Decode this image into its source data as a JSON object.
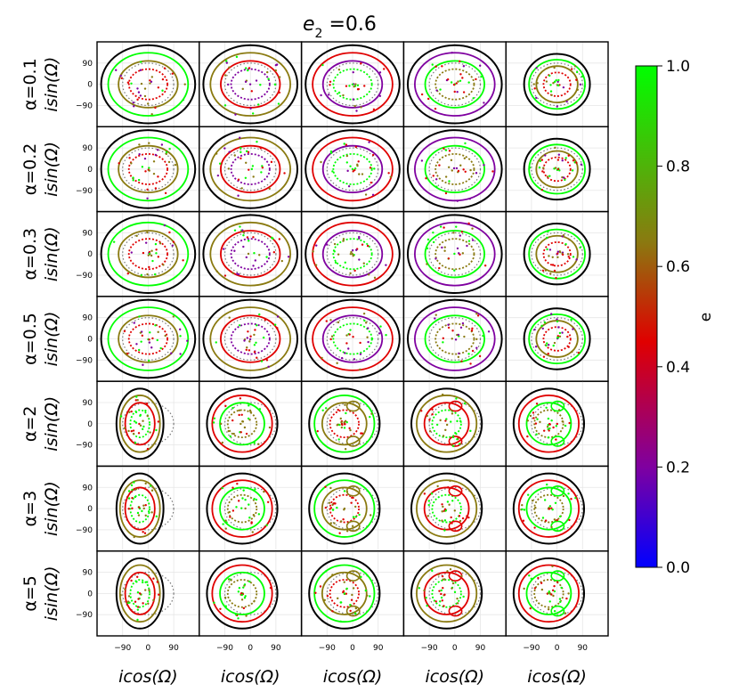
{
  "chart_data": {
    "type": "scatter",
    "title": "e₂ =0.6",
    "title_main": "e",
    "title_sub": "2",
    "title_rest": " =0.6",
    "grid": true,
    "columns": 5,
    "rows": [
      {
        "label": "α=0.1",
        "ylabel": "isin(Ω)"
      },
      {
        "label": "α=0.2",
        "ylabel": "isin(Ω)"
      },
      {
        "label": "α=0.3",
        "ylabel": "isin(Ω)"
      },
      {
        "label": "α=0.5",
        "ylabel": "isin(Ω)"
      },
      {
        "label": "α=2",
        "ylabel": "isin(Ω)"
      },
      {
        "label": "α=3",
        "ylabel": "isin(Ω)"
      },
      {
        "label": "α=5",
        "ylabel": "isin(Ω)"
      }
    ],
    "xlabel": "icos(Ω)",
    "xticks": [
      "−90",
      "0",
      "90"
    ],
    "yticks": [
      "90",
      "0",
      "−90"
    ],
    "xlim": [
      -180,
      180
    ],
    "ylim": [
      -180,
      180
    ],
    "colorbar": {
      "label": "e",
      "range": [
        0.0,
        1.0
      ],
      "ticks": [
        "1.0",
        "0.8",
        "0.6",
        "0.4",
        "0.2",
        "0.0"
      ],
      "colors": [
        "#0000ff",
        "#7f00a0",
        "#e00000",
        "#8a7a10",
        "#00ff00"
      ]
    }
  }
}
